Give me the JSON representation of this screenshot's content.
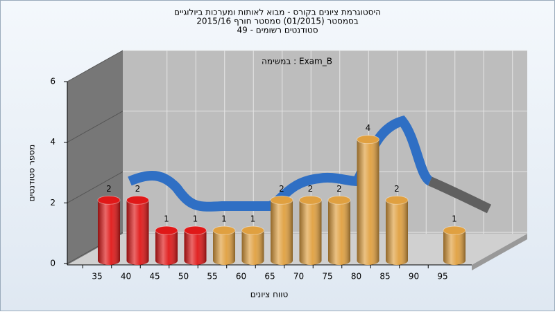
{
  "chart_data": {
    "type": "bar3d",
    "title": "היסטוגרמת ציונים בקורס - מבוא לאותות ומערכות ביולוגיים",
    "subtitle": "בסמסטר  (01/2015)  סמסטר חורף 2015/16",
    "subtitle2": "סטודנטים רשומים - 49",
    "annotation": "במשימה : Exam_B",
    "x_label": "טווח ציונים",
    "y_label": "מספר סטודנטים",
    "categories": [
      "35",
      "40",
      "45",
      "50",
      "55",
      "60",
      "65",
      "70",
      "75",
      "80",
      "85",
      "90",
      "95"
    ],
    "values": [
      2,
      2,
      1,
      1,
      1,
      1,
      2,
      2,
      2,
      4,
      2,
      0,
      1
    ],
    "colors": [
      "#e01818",
      "#e01818",
      "#e01818",
      "#e01818",
      "#e0a040",
      "#e0a040",
      "#e0a040",
      "#e0a040",
      "#e0a040",
      "#e0a040",
      "#e0a040",
      "#e0a040",
      "#e0a040"
    ],
    "ylim": [
      0,
      6
    ],
    "yticks": [
      0,
      2,
      4,
      6
    ],
    "grid": true
  }
}
